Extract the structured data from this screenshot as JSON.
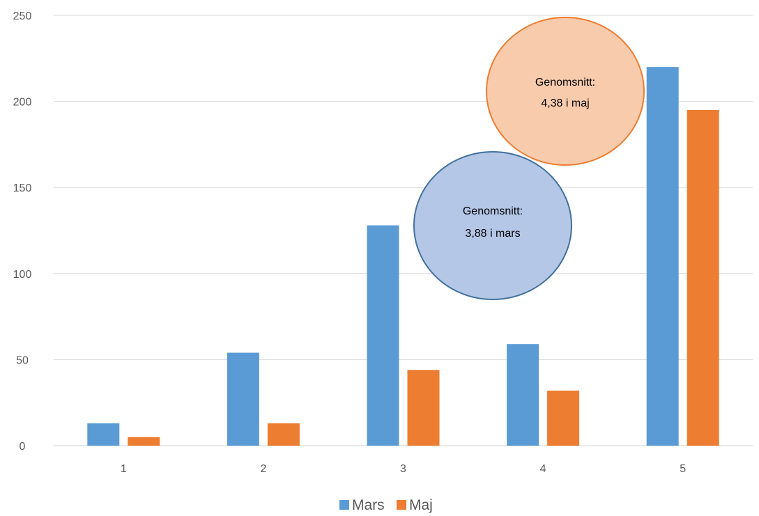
{
  "chart_data": {
    "type": "bar",
    "categories": [
      "1",
      "2",
      "3",
      "4",
      "5"
    ],
    "series": [
      {
        "name": "Mars",
        "values": [
          13,
          54,
          128,
          59,
          220
        ],
        "color": "#5B9BD5"
      },
      {
        "name": "Maj",
        "values": [
          5,
          13,
          44,
          32,
          195
        ],
        "color": "#ED7D31"
      }
    ],
    "yticks": [
      "0",
      "50",
      "100",
      "150",
      "200",
      "250"
    ],
    "ylim": [
      0,
      250
    ],
    "grid": true,
    "legend": "bottom",
    "annotations": [
      {
        "lines": [
          "Genomsnitt:",
          "3,88 i mars"
        ],
        "fill": "#B4C7E7",
        "stroke": "#41719C"
      },
      {
        "lines": [
          "Genomsnitt:",
          "4,38 i maj"
        ],
        "fill": "#F8CBAD",
        "stroke": "#ED7D31"
      }
    ]
  }
}
